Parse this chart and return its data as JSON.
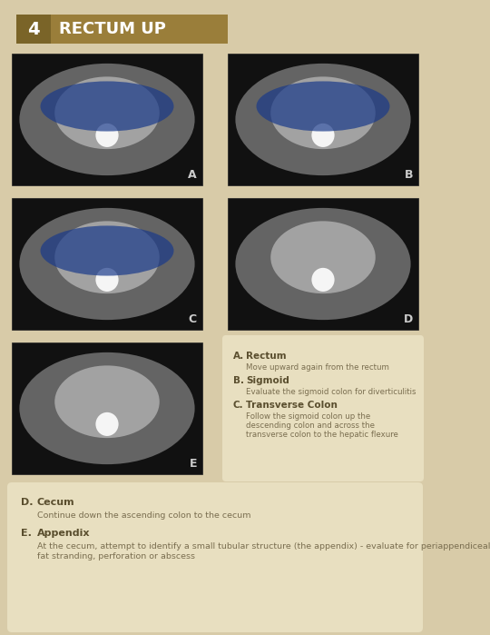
{
  "bg_color": "#d8cba8",
  "title_number": "4",
  "title_text": "RECTUM UP",
  "title_number_bg": "#7a6428",
  "title_text_bg": "#9a7e3a",
  "title_text_color": "#ffffff",
  "title_number_color": "#ffffff",
  "panel_bg": "#e8dfc0",
  "info_box_abc": {
    "items": [
      {
        "letter": "A.",
        "title": "Rectum",
        "desc": "Move upward again from the rectum"
      },
      {
        "letter": "B.",
        "title": "Sigmoid",
        "desc": "Evaluate the sigmoid colon for diverticulitis"
      },
      {
        "letter": "C.",
        "title": "Transverse Colon",
        "desc": "Follow the sigmoid colon up the\ndescending colon and across the\ntransverse colon to the hepatic flexure"
      }
    ]
  },
  "info_box_de": {
    "items": [
      {
        "letter": "D.",
        "title": "Cecum",
        "desc": "Continue down the ascending colon to the cecum"
      },
      {
        "letter": "E.",
        "title": "Appendix",
        "desc": "At the cecum, attempt to identify a small tubular structure (the appendix) - evaluate for periappendiceal\nfat stranding, perforation or abscess"
      }
    ]
  },
  "text_dark": "#5a4e2e",
  "text_medium": "#7a6e50"
}
